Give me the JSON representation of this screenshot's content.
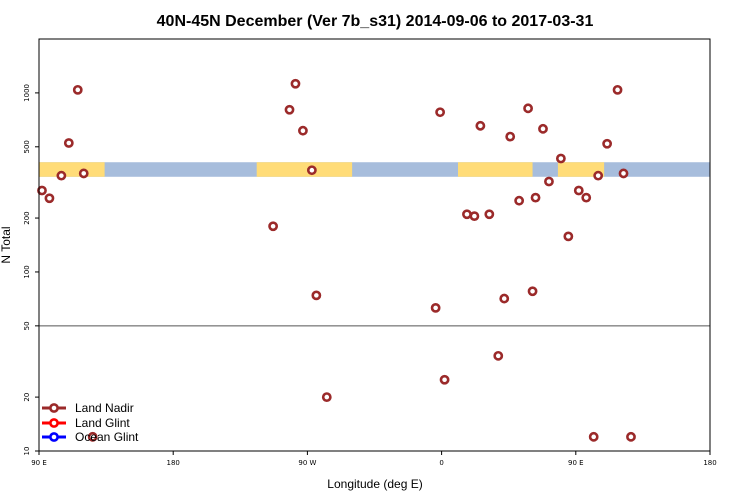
{
  "chart_data": {
    "type": "scatter",
    "title": "40N-45N December (Ver 7b_s31)   2014-09-06 to 2017-03-31",
    "xlabel": "Longitude (deg E)",
    "ylabel": "N Total",
    "x_ticks": [
      {
        "value": -90,
        "label": "90 E"
      },
      {
        "value": 0,
        "label": "180"
      },
      {
        "value": 90,
        "label": "90 W"
      },
      {
        "value": 180,
        "label": "0"
      },
      {
        "value": 270,
        "label": "90 E"
      },
      {
        "value": 360,
        "label": "180"
      }
    ],
    "xlim": [
      -90,
      360
    ],
    "y_scale": "log",
    "ylim": [
      10,
      2000
    ],
    "y_ticks": [
      {
        "value": 10,
        "label": "10"
      },
      {
        "value": 20,
        "label": "20"
      },
      {
        "value": 50,
        "label": "50"
      },
      {
        "value": 100,
        "label": "100"
      },
      {
        "value": 200,
        "label": "200"
      },
      {
        "value": 500,
        "label": "500"
      },
      {
        "value": 1000,
        "label": "1000"
      }
    ],
    "reference_line": 50,
    "colors": {
      "land_nadir": "#9b2a2a",
      "land_glint": "#ff0000",
      "ocean_glint": "#0000ff",
      "surface_land": "#ffdc78",
      "surface_ocean": "#a7bddc"
    },
    "series": [
      {
        "name": "Land Nadir",
        "points": [
          {
            "x": -88,
            "y": 285
          },
          {
            "x": -83,
            "y": 258
          },
          {
            "x": -75,
            "y": 345
          },
          {
            "x": -70,
            "y": 525
          },
          {
            "x": -64,
            "y": 1040
          },
          {
            "x": -60,
            "y": 355
          },
          {
            "x": -54,
            "y": 12
          },
          {
            "x": 67,
            "y": 180
          },
          {
            "x": 78,
            "y": 805
          },
          {
            "x": 82,
            "y": 1125
          },
          {
            "x": 87,
            "y": 615
          },
          {
            "x": 93,
            "y": 370
          },
          {
            "x": 96,
            "y": 74
          },
          {
            "x": 103,
            "y": 20
          },
          {
            "x": 176,
            "y": 63
          },
          {
            "x": 179,
            "y": 780
          },
          {
            "x": 182,
            "y": 25
          },
          {
            "x": 197,
            "y": 210
          },
          {
            "x": 202,
            "y": 205
          },
          {
            "x": 206,
            "y": 655
          },
          {
            "x": 212,
            "y": 210
          },
          {
            "x": 218,
            "y": 34
          },
          {
            "x": 222,
            "y": 71
          },
          {
            "x": 226,
            "y": 570
          },
          {
            "x": 232,
            "y": 250
          },
          {
            "x": 238,
            "y": 820
          },
          {
            "x": 241,
            "y": 78
          },
          {
            "x": 243,
            "y": 260
          },
          {
            "x": 248,
            "y": 630
          },
          {
            "x": 252,
            "y": 320
          },
          {
            "x": 260,
            "y": 430
          },
          {
            "x": 265,
            "y": 158
          },
          {
            "x": 272,
            "y": 285
          },
          {
            "x": 277,
            "y": 260
          },
          {
            "x": 282,
            "y": 12
          },
          {
            "x": 285,
            "y": 345
          },
          {
            "x": 291,
            "y": 520
          },
          {
            "x": 298,
            "y": 1040
          },
          {
            "x": 302,
            "y": 355
          },
          {
            "x": 307,
            "y": 12
          }
        ]
      },
      {
        "name": "Land Glint",
        "points": []
      },
      {
        "name": "Ocean Glint",
        "points": []
      }
    ],
    "surface_band": {
      "y_range": [
        340,
        410
      ],
      "land_segments": [
        [
          -90,
          -46
        ],
        [
          56,
          120
        ],
        [
          191,
          241
        ],
        [
          258,
          289
        ]
      ]
    },
    "legend_position": "bottom-left"
  }
}
